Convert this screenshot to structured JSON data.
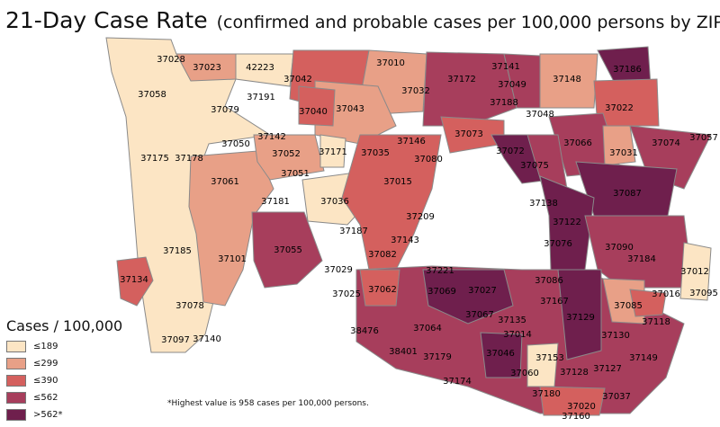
{
  "title": "21-Day Case Rate",
  "subtitle": "(confirmed and probable cases per 100,000 persons by ZIP)",
  "legend": {
    "title": "Cases / 100,000",
    "items": [
      {
        "label": "≤189",
        "color": "#fce5c4"
      },
      {
        "label": "≤299",
        "color": "#e8a087"
      },
      {
        "label": "≤390",
        "color": "#d4605e"
      },
      {
        "label": "≤562",
        "color": "#a73e5c"
      },
      {
        "label": ">562*",
        "color": "#6f1f4d"
      }
    ]
  },
  "footnote": "*Highest value is 958 cases per 100,000 persons.",
  "zips": [
    {
      "code": "37028",
      "cls": 1
    },
    {
      "code": "37023",
      "cls": 2
    },
    {
      "code": "42223",
      "cls": 1
    },
    {
      "code": "37058",
      "cls": 1
    },
    {
      "code": "37079",
      "cls": 1
    },
    {
      "code": "37191",
      "cls": 1
    },
    {
      "code": "37042",
      "cls": 3
    },
    {
      "code": "37010",
      "cls": 2
    },
    {
      "code": "37032",
      "cls": 2
    },
    {
      "code": "37172",
      "cls": 4
    },
    {
      "code": "37141",
      "cls": 4
    },
    {
      "code": "37049",
      "cls": 3
    },
    {
      "code": "37148",
      "cls": 2
    },
    {
      "code": "37186",
      "cls": 5
    },
    {
      "code": "37040",
      "cls": 3
    },
    {
      "code": "37043",
      "cls": 2
    },
    {
      "code": "37188",
      "cls": 4
    },
    {
      "code": "37048",
      "cls": 3
    },
    {
      "code": "37022",
      "cls": 3
    },
    {
      "code": "37142",
      "cls": 2
    },
    {
      "code": "37050",
      "cls": 1
    },
    {
      "code": "37146",
      "cls": 4
    },
    {
      "code": "37073",
      "cls": 3
    },
    {
      "code": "37072",
      "cls": 5
    },
    {
      "code": "37066",
      "cls": 4
    },
    {
      "code": "37074",
      "cls": 4
    },
    {
      "code": "37057",
      "cls": 4
    },
    {
      "code": "37175",
      "cls": 1
    },
    {
      "code": "37178",
      "cls": 1
    },
    {
      "code": "37052",
      "cls": 2
    },
    {
      "code": "37171",
      "cls": 1
    },
    {
      "code": "37035",
      "cls": 2
    },
    {
      "code": "37080",
      "cls": 3
    },
    {
      "code": "37075",
      "cls": 4
    },
    {
      "code": "37031",
      "cls": 2
    },
    {
      "code": "37061",
      "cls": 2
    },
    {
      "code": "37051",
      "cls": 2
    },
    {
      "code": "37015",
      "cls": 3
    },
    {
      "code": "37087",
      "cls": 5
    },
    {
      "code": "37181",
      "cls": 2
    },
    {
      "code": "37036",
      "cls": 1
    },
    {
      "code": "37138",
      "cls": 5
    },
    {
      "code": "37209",
      "cls": 3
    },
    {
      "code": "37122",
      "cls": 5
    },
    {
      "code": "37187",
      "cls": 3
    },
    {
      "code": "37143",
      "cls": 3
    },
    {
      "code": "37076",
      "cls": 5
    },
    {
      "code": "37090",
      "cls": 4
    },
    {
      "code": "37185",
      "cls": 1
    },
    {
      "code": "37055",
      "cls": 4
    },
    {
      "code": "37101",
      "cls": 2
    },
    {
      "code": "37082",
      "cls": 4
    },
    {
      "code": "37184",
      "cls": 4
    },
    {
      "code": "37134",
      "cls": 3
    },
    {
      "code": "37221",
      "cls": 4
    },
    {
      "code": "37029",
      "cls": 2
    },
    {
      "code": "37012",
      "cls": 1
    },
    {
      "code": "37069",
      "cls": 5
    },
    {
      "code": "37027",
      "cls": 4
    },
    {
      "code": "37086",
      "cls": 4
    },
    {
      "code": "37095",
      "cls": 1
    },
    {
      "code": "37025",
      "cls": 2
    },
    {
      "code": "37062",
      "cls": 3
    },
    {
      "code": "37167",
      "cls": 4
    },
    {
      "code": "37016",
      "cls": 3
    },
    {
      "code": "37078",
      "cls": 1
    },
    {
      "code": "37067",
      "cls": 4
    },
    {
      "code": "37085",
      "cls": 2
    },
    {
      "code": "37135",
      "cls": 4
    },
    {
      "code": "37129",
      "cls": 5
    },
    {
      "code": "37118",
      "cls": 2
    },
    {
      "code": "37064",
      "cls": 4
    },
    {
      "code": "38476",
      "cls": 4
    },
    {
      "code": "37014",
      "cls": 4
    },
    {
      "code": "37097",
      "cls": 1
    },
    {
      "code": "37140",
      "cls": 1
    },
    {
      "code": "37130",
      "cls": 4
    },
    {
      "code": "38401",
      "cls": 4
    },
    {
      "code": "37179",
      "cls": 4
    },
    {
      "code": "37046",
      "cls": 5
    },
    {
      "code": "37153",
      "cls": 1
    },
    {
      "code": "37060",
      "cls": 4
    },
    {
      "code": "37128",
      "cls": 4
    },
    {
      "code": "37127",
      "cls": 4
    },
    {
      "code": "37149",
      "cls": 4
    },
    {
      "code": "37174",
      "cls": 4
    },
    {
      "code": "37180",
      "cls": 3
    },
    {
      "code": "37020",
      "cls": 3
    },
    {
      "code": "37037",
      "cls": 4
    },
    {
      "code": "37160",
      "cls": 3
    }
  ]
}
